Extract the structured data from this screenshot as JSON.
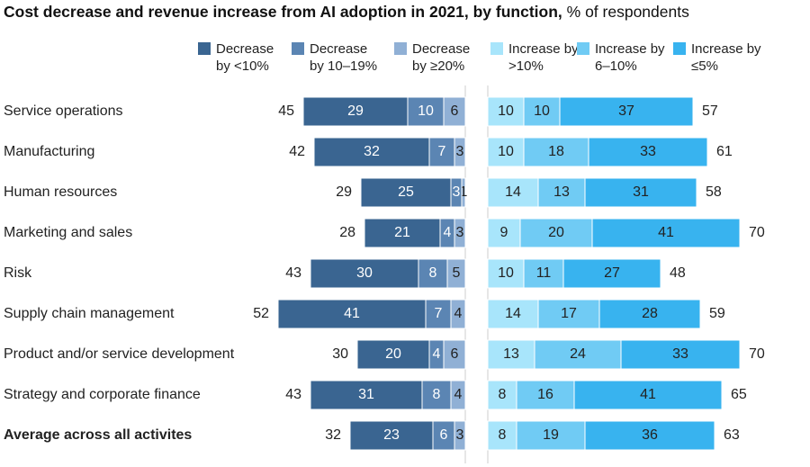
{
  "chart_data": {
    "type": "diverging-bar",
    "title": "Cost decrease and revenue increase from AI adoption in 2021, by function,",
    "subtitle": "% of respondents",
    "categories": [
      "Service operations",
      "Manufacturing",
      "Human resources",
      "Marketing and sales",
      "Risk",
      "Supply chain management",
      "Product and/or service development",
      "Strategy and corporate finance",
      "Average across all activites"
    ],
    "series": [
      {
        "name": "Decrease by <10%",
        "color": "#3a6591",
        "side": "decrease",
        "values": [
          29,
          32,
          25,
          21,
          30,
          41,
          20,
          31,
          23
        ]
      },
      {
        "name": "Decrease by 10–19%",
        "color": "#5b85b3",
        "side": "decrease",
        "values": [
          10,
          7,
          3,
          4,
          8,
          7,
          4,
          8,
          6
        ]
      },
      {
        "name": "Decrease by ≥20%",
        "color": "#90b0d5",
        "side": "decrease",
        "values": [
          6,
          3,
          1,
          3,
          5,
          4,
          6,
          4,
          3
        ]
      },
      {
        "name": "Increase by >10%",
        "color": "#a8e5fb",
        "side": "increase",
        "values": [
          10,
          10,
          14,
          9,
          10,
          14,
          13,
          8,
          8
        ]
      },
      {
        "name": "Increase by 6–10%",
        "color": "#70cbf4",
        "side": "increase",
        "values": [
          10,
          18,
          13,
          20,
          11,
          17,
          24,
          16,
          19
        ]
      },
      {
        "name": "Increase by ≤5%",
        "color": "#38b3ef",
        "side": "increase",
        "values": [
          37,
          33,
          31,
          41,
          27,
          28,
          33,
          41,
          36
        ]
      }
    ],
    "decrease_totals": [
      45,
      42,
      29,
      28,
      43,
      52,
      30,
      43,
      32
    ],
    "increase_totals": [
      57,
      61,
      58,
      70,
      48,
      59,
      70,
      65,
      63
    ]
  }
}
